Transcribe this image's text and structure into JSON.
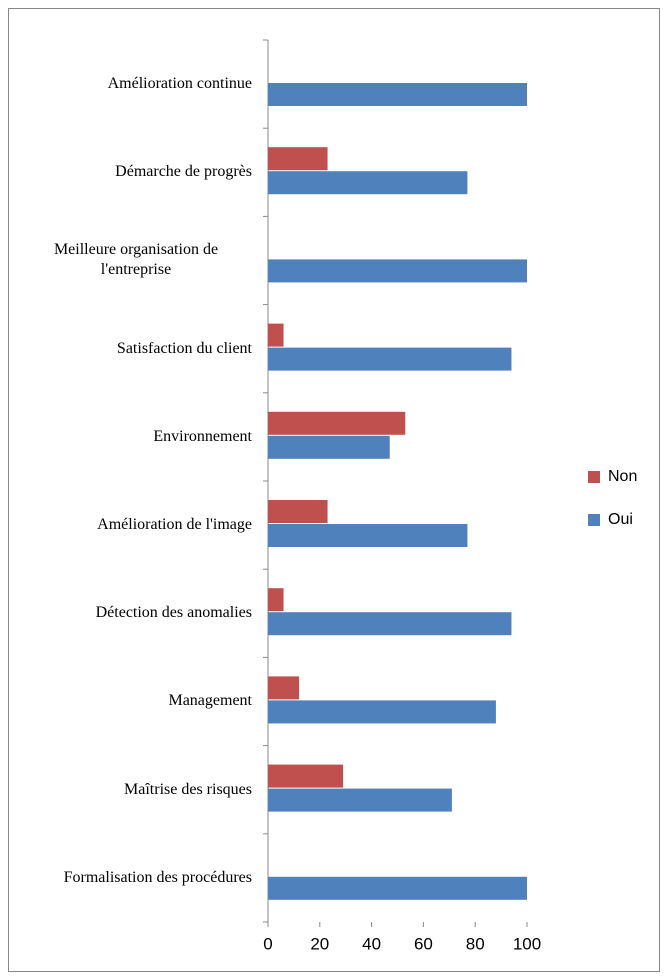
{
  "chart_data": {
    "type": "hbar",
    "categories": [
      "Amélioration continue",
      "Démarche de progrès",
      "Meilleure organisation de l'entreprise",
      "Satisfaction du client",
      "Environnement",
      "Amélioration de l'image",
      "Détection des anomalies",
      "Management",
      "Maîtrise des risques",
      "Formalisation des procédures"
    ],
    "series": [
      {
        "name": "Non",
        "color": "#c0504d",
        "values": [
          0,
          23,
          0,
          6,
          53,
          23,
          6,
          12,
          29,
          0
        ]
      },
      {
        "name": "Oui",
        "color": "#4f81bd",
        "values": [
          100,
          77,
          100,
          94,
          47,
          77,
          94,
          88,
          71,
          100
        ]
      }
    ],
    "xlim": [
      0,
      100
    ],
    "xticks": [
      0,
      20,
      40,
      60,
      80,
      100
    ],
    "legend": "right"
  }
}
